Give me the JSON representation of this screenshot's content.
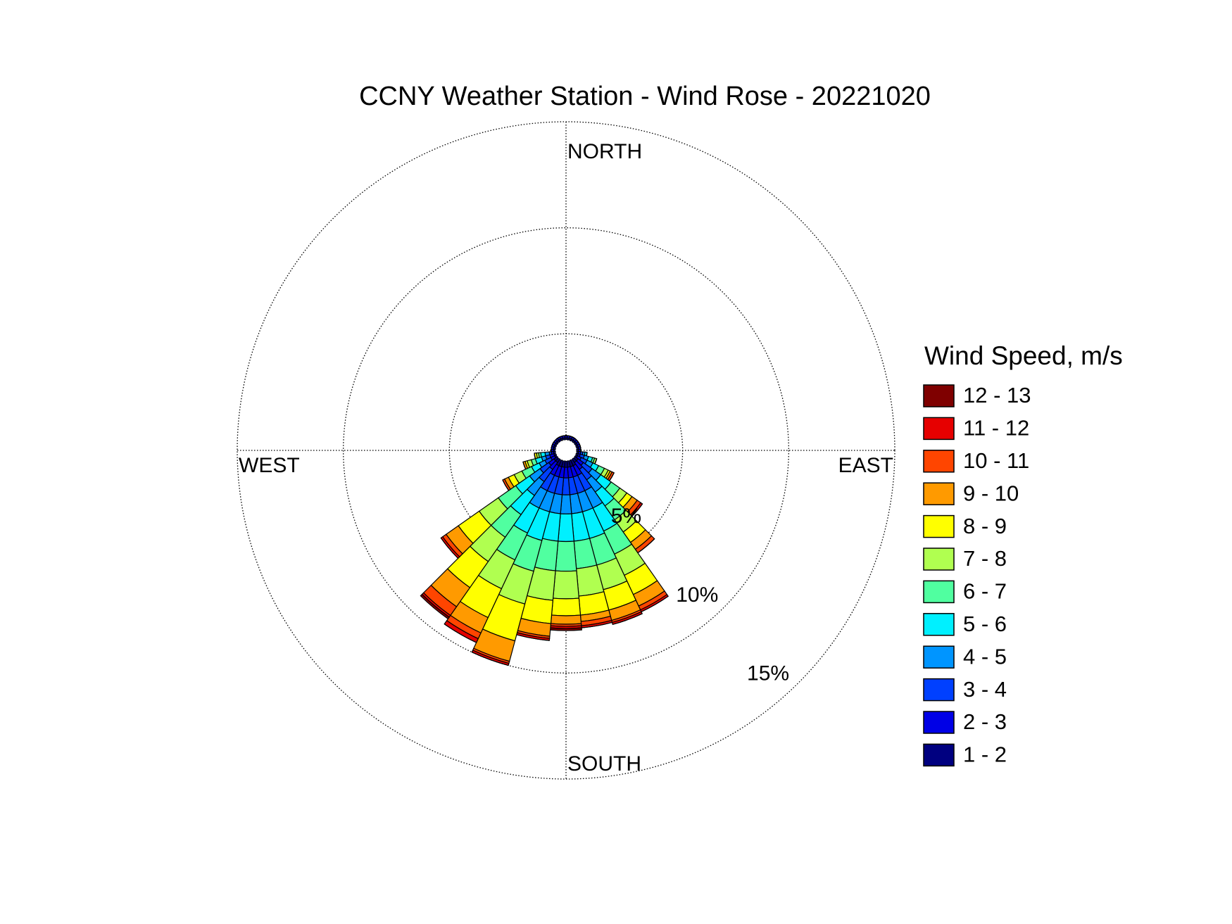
{
  "chart_data": {
    "type": "windrose",
    "title": "CCNY Weather Station - Wind Rose - 20221020",
    "legend_title": "Wind Speed, m/s",
    "directions": [
      "NORTH",
      "EAST",
      "SOUTH",
      "WEST"
    ],
    "x": [
      0,
      10,
      20,
      30,
      40,
      50,
      60,
      70,
      80,
      90,
      100,
      110,
      120,
      130,
      140,
      150,
      160,
      170,
      180,
      190,
      200,
      210,
      220,
      230,
      240,
      250,
      260,
      270,
      280,
      290,
      300,
      310,
      320,
      330,
      340,
      350
    ],
    "xlim": [
      0,
      360
    ],
    "ylim": [
      0,
      15
    ],
    "yticks": [
      {
        "value": 5,
        "label": "5%"
      },
      {
        "value": 10,
        "label": "10%"
      },
      {
        "value": 15,
        "label": "15%"
      }
    ],
    "grid": true,
    "legend": "right",
    "series": [
      {
        "name": "1 - 2",
        "color": "#000080",
        "values": [
          0.1,
          0.1,
          0.1,
          0.1,
          0.1,
          0.1,
          0.1,
          0.1,
          0.1,
          0.1,
          0.1,
          0.1,
          0.1,
          0.2,
          0.2,
          0.3,
          0.3,
          0.3,
          0.3,
          0.3,
          0.3,
          0.3,
          0.2,
          0.2,
          0.1,
          0.1,
          0.1,
          0.1,
          0.1,
          0.1,
          0.1,
          0.1,
          0.1,
          0.1,
          0.1,
          0.1
        ]
      },
      {
        "name": "2 - 3",
        "color": "#0000e6",
        "values": [
          0.1,
          0.1,
          0.1,
          0.1,
          0.1,
          0.1,
          0.1,
          0.1,
          0.1,
          0.1,
          0.1,
          0.1,
          0.2,
          0.3,
          0.4,
          0.5,
          0.5,
          0.5,
          0.5,
          0.5,
          0.5,
          0.5,
          0.4,
          0.3,
          0.2,
          0.2,
          0.1,
          0.1,
          0.1,
          0.1,
          0.1,
          0.1,
          0.1,
          0.1,
          0.1,
          0.1
        ]
      },
      {
        "name": "3 - 4",
        "color": "#0040ff",
        "values": [
          0,
          0,
          0,
          0,
          0,
          0,
          0,
          0,
          0,
          0,
          0.1,
          0.2,
          0.3,
          0.5,
          0.6,
          0.8,
          0.8,
          0.8,
          0.8,
          0.8,
          0.8,
          0.8,
          0.7,
          0.5,
          0.3,
          0.2,
          0.1,
          0,
          0,
          0,
          0,
          0,
          0,
          0,
          0,
          0
        ]
      },
      {
        "name": "4 - 5",
        "color": "#0095ff",
        "values": [
          0,
          0,
          0,
          0,
          0,
          0,
          0,
          0,
          0,
          0,
          0.1,
          0.2,
          0.3,
          0.5,
          0.7,
          0.9,
          0.9,
          0.9,
          0.9,
          0.9,
          0.9,
          0.9,
          0.8,
          0.6,
          0.3,
          0.2,
          0.2,
          0,
          0,
          0,
          0,
          0,
          0,
          0,
          0,
          0
        ]
      },
      {
        "name": "5 - 6",
        "color": "#00f0ff",
        "values": [
          0,
          0,
          0,
          0,
          0,
          0,
          0,
          0,
          0,
          0,
          0.1,
          0.2,
          0.3,
          0.6,
          0.8,
          1.2,
          1.3,
          1.3,
          1.3,
          1.3,
          1.4,
          1.3,
          1.1,
          0.8,
          0.4,
          0.3,
          0.2,
          0,
          0,
          0,
          0,
          0,
          0,
          0,
          0,
          0
        ]
      },
      {
        "name": "6 - 7",
        "color": "#50ffa0",
        "values": [
          0,
          0,
          0,
          0,
          0,
          0,
          0,
          0,
          0,
          0,
          0,
          0.1,
          0.3,
          0.5,
          0.8,
          1.2,
          1.3,
          1.3,
          1.4,
          1.4,
          1.5,
          1.4,
          1.3,
          1.0,
          0.5,
          0.2,
          0.1,
          0,
          0,
          0,
          0,
          0,
          0,
          0,
          0,
          0
        ]
      },
      {
        "name": "7 - 8",
        "color": "#b0ff50",
        "values": [
          0,
          0,
          0,
          0,
          0,
          0,
          0,
          0,
          0,
          0,
          0,
          0.1,
          0.2,
          0.4,
          0.7,
          1.1,
          1.2,
          1.3,
          1.3,
          1.4,
          1.6,
          1.5,
          1.4,
          1.1,
          0.4,
          0.2,
          0.1,
          0,
          0,
          0,
          0,
          0,
          0,
          0,
          0,
          0
        ]
      },
      {
        "name": "8 - 9",
        "color": "#ffff00",
        "values": [
          0,
          0,
          0,
          0,
          0,
          0,
          0,
          0,
          0,
          0,
          0,
          0,
          0.1,
          0.3,
          0.6,
          1.0,
          1.0,
          0.9,
          0.8,
          1.1,
          1.8,
          1.5,
          1.5,
          1.2,
          0.3,
          0.1,
          0.1,
          0,
          0,
          0,
          0,
          0,
          0,
          0,
          0,
          0
        ]
      },
      {
        "name": "9 - 10",
        "color": "#ff9a00",
        "values": [
          0,
          0,
          0,
          0,
          0,
          0,
          0,
          0,
          0,
          0,
          0,
          0,
          0.1,
          0.3,
          0.4,
          0.6,
          0.5,
          0.3,
          0.4,
          0.6,
          1.0,
          0.8,
          1.1,
          0.7,
          0.2,
          0.1,
          0,
          0,
          0,
          0,
          0,
          0,
          0,
          0,
          0,
          0
        ]
      },
      {
        "name": "10 - 11",
        "color": "#ff4500",
        "values": [
          0,
          0,
          0,
          0,
          0,
          0,
          0,
          0,
          0,
          0,
          0,
          0,
          0.1,
          0.2,
          0.2,
          0.2,
          0.1,
          0.2,
          0.1,
          0.1,
          0.1,
          0.3,
          0.5,
          0.2,
          0.1,
          0,
          0,
          0,
          0,
          0,
          0,
          0,
          0,
          0,
          0,
          0
        ]
      },
      {
        "name": "11 - 12",
        "color": "#e60000",
        "values": [
          0,
          0,
          0,
          0,
          0,
          0,
          0,
          0,
          0,
          0,
          0,
          0,
          0,
          0.1,
          0,
          0.1,
          0.1,
          0.1,
          0.1,
          0.1,
          0.1,
          0.2,
          0.1,
          0.1,
          0,
          0,
          0,
          0,
          0,
          0,
          0,
          0,
          0,
          0,
          0,
          0
        ]
      },
      {
        "name": "12 - 13",
        "color": "#7f0000",
        "values": [
          0,
          0,
          0,
          0,
          0,
          0,
          0,
          0,
          0,
          0,
          0,
          0,
          0,
          0,
          0,
          0,
          0,
          0,
          0.1,
          0,
          0,
          0,
          0.1,
          0,
          0,
          0,
          0,
          0,
          0,
          0,
          0,
          0,
          0,
          0,
          0,
          0
        ]
      }
    ]
  }
}
